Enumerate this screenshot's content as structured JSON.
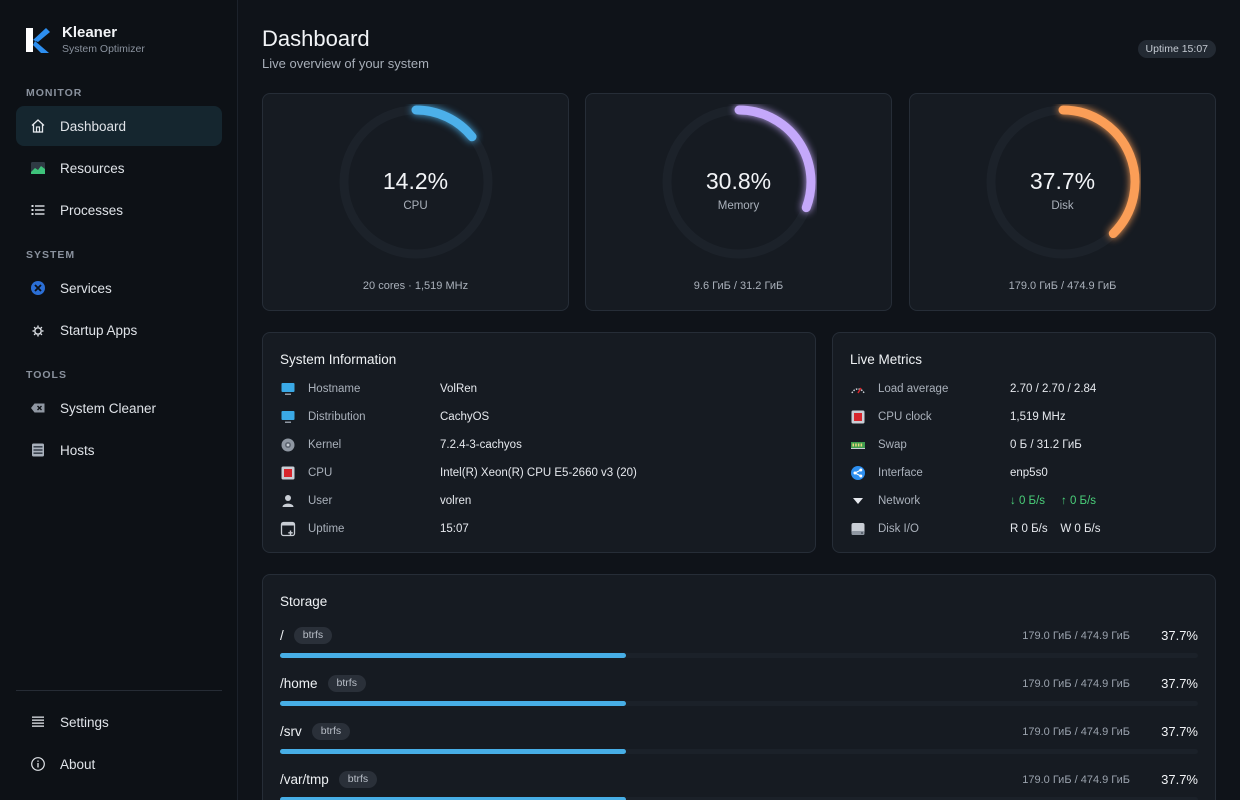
{
  "app": {
    "name": "Kleaner",
    "subtitle": "System Optimizer"
  },
  "sidebar": {
    "sections": [
      {
        "label": "MONITOR",
        "items": [
          {
            "label": "Dashboard",
            "icon": "home-icon",
            "active": true
          },
          {
            "label": "Resources",
            "icon": "chart-icon",
            "active": false
          },
          {
            "label": "Processes",
            "icon": "list-icon",
            "active": false
          }
        ]
      },
      {
        "label": "SYSTEM",
        "items": [
          {
            "label": "Services",
            "icon": "tools-icon",
            "active": false
          },
          {
            "label": "Startup Apps",
            "icon": "gear-icon",
            "active": false
          }
        ]
      },
      {
        "label": "TOOLS",
        "items": [
          {
            "label": "System Cleaner",
            "icon": "eraser-icon",
            "active": false
          },
          {
            "label": "Hosts",
            "icon": "server-icon",
            "active": false
          }
        ]
      }
    ],
    "footer": [
      {
        "label": "Settings",
        "icon": "menu-icon"
      },
      {
        "label": "About",
        "icon": "info-icon"
      }
    ]
  },
  "header": {
    "title": "Dashboard",
    "subtitle": "Live overview of your system",
    "uptime": "Uptime 15:07"
  },
  "gauges": [
    {
      "value": "14.2%",
      "label": "CPU",
      "detail": "20 cores · 1,519 MHz",
      "fraction": 0.142,
      "color": "#4cb0ea"
    },
    {
      "value": "30.8%",
      "label": "Memory",
      "detail": "9.6 ГиБ / 31.2 ГиБ",
      "fraction": 0.308,
      "color": "#c4a8fa"
    },
    {
      "value": "37.7%",
      "label": "Disk",
      "detail": "179.0 ГиБ / 474.9 ГиБ",
      "fraction": 0.377,
      "color": "#fb9e57"
    }
  ],
  "system_info": {
    "title": "System Information",
    "rows": [
      {
        "key": "Hostname",
        "value": "VolRen",
        "icon": "monitor-icon"
      },
      {
        "key": "Distribution",
        "value": "CachyOS",
        "icon": "monitor-icon"
      },
      {
        "key": "Kernel",
        "value": "7.2.4-3-cachyos",
        "icon": "gear-icon"
      },
      {
        "key": "CPU",
        "value": "Intel(R) Xeon(R) CPU E5-2660 v3 (20)",
        "icon": "cpu-icon"
      },
      {
        "key": "User",
        "value": "volren",
        "icon": "user-icon"
      },
      {
        "key": "Uptime",
        "value": "15:07",
        "icon": "clock-icon"
      }
    ]
  },
  "live_metrics": {
    "title": "Live Metrics",
    "rows": [
      {
        "key": "Load average",
        "value": "2.70 / 2.70 / 2.84",
        "icon": "speedometer-icon"
      },
      {
        "key": "CPU clock",
        "value": "1,519 MHz",
        "icon": "cpu-icon"
      },
      {
        "key": "Swap",
        "value": "0 Б / 31.2 ГиБ",
        "icon": "ram-icon"
      },
      {
        "key": "Interface",
        "value": "enp5s0",
        "icon": "network-share-icon"
      },
      {
        "key": "Network",
        "down": "↓ 0 Б/s",
        "up": "↑ 0 Б/s",
        "icon": "triangle-down-icon"
      },
      {
        "key": "Disk I/O",
        "value": "R 0 Б/s    W 0 Б/s",
        "icon": "drive-icon"
      }
    ]
  },
  "storage": {
    "title": "Storage",
    "rows": [
      {
        "mount": "/",
        "fs": "btrfs",
        "used": "179.0 ГиБ / 474.9 ГиБ",
        "percent": "37.7%",
        "fraction": 0.377
      },
      {
        "mount": "/home",
        "fs": "btrfs",
        "used": "179.0 ГиБ / 474.9 ГиБ",
        "percent": "37.7%",
        "fraction": 0.377
      },
      {
        "mount": "/srv",
        "fs": "btrfs",
        "used": "179.0 ГиБ / 474.9 ГиБ",
        "percent": "37.7%",
        "fraction": 0.377
      },
      {
        "mount": "/var/tmp",
        "fs": "btrfs",
        "used": "179.0 ГиБ / 474.9 ГиБ",
        "percent": "37.7%",
        "fraction": 0.377
      }
    ]
  },
  "colors": {
    "accent": "#47aee6",
    "network": "#4ad07a"
  }
}
